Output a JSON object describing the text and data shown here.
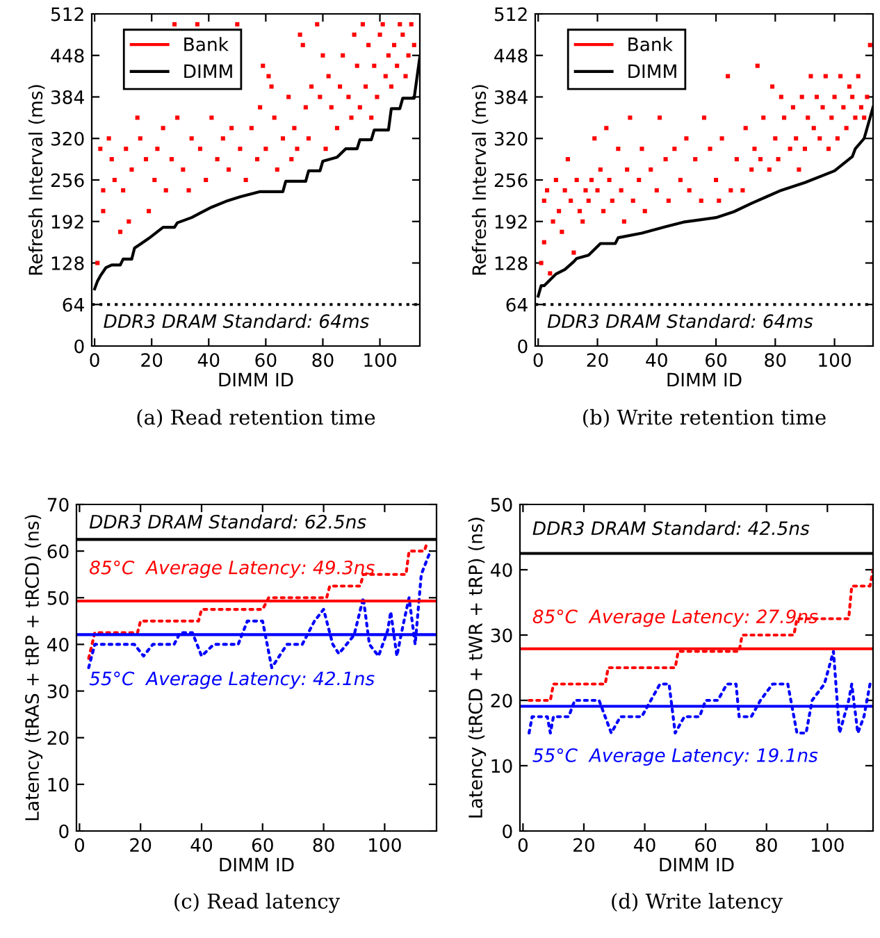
{
  "chart_data": [
    {
      "type": "line",
      "xlabel": "DIMM ID",
      "ylabel": "Refresh Interval (ms)",
      "annotations": [
        "(a) Read retention time"
      ],
      "xlim": [
        -1,
        114
      ],
      "xticks": [
        0,
        20,
        40,
        60,
        80,
        100
      ],
      "ylim": [
        0,
        512
      ],
      "yticks": [
        0,
        64,
        128,
        192,
        256,
        320,
        384,
        448,
        512
      ],
      "grid": false,
      "legend": "top left",
      "series": [
        {
          "name": "Bank",
          "type": "scatter",
          "marker": "square",
          "color": "#ff0000",
          "x": [
            1,
            2,
            3,
            3,
            5,
            6,
            7,
            9,
            10,
            11,
            12,
            13,
            15,
            16,
            18,
            19,
            21,
            22,
            24,
            25,
            27,
            28,
            29,
            31,
            33,
            34,
            36,
            37,
            39,
            41,
            43,
            45,
            47,
            48,
            50,
            51,
            53,
            55,
            57,
            58,
            59,
            60,
            61,
            62,
            63,
            64,
            66,
            68,
            69,
            70,
            71,
            72,
            73,
            74,
            75,
            76,
            78,
            79,
            80,
            81,
            82,
            83,
            85,
            86,
            87,
            89,
            90,
            91,
            92,
            93,
            94,
            95,
            96,
            97,
            98,
            99,
            100,
            101,
            102,
            103,
            104,
            105,
            106,
            107,
            108,
            109,
            110,
            111,
            112
          ],
          "values": [
            128,
            304,
            240,
            208,
            320,
            288,
            256,
            176,
            240,
            304,
            192,
            272,
            352,
            320,
            288,
            208,
            256,
            304,
            336,
            240,
            288,
            496,
            352,
            272,
            240,
            320,
            496,
            304,
            256,
            352,
            288,
            320,
            272,
            336,
            496,
            304,
            256,
            336,
            288,
            368,
            432,
            304,
            416,
            400,
            352,
            272,
            320,
            384,
            288,
            336,
            304,
            480,
            464,
            368,
            320,
            400,
            496,
            384,
            448,
            304,
            416,
            368,
            336,
            400,
            448,
            384,
            352,
            480,
            432,
            368,
            496,
            400,
            464,
            352,
            432,
            384,
            480,
            496,
            416,
            448,
            400,
            464,
            432,
            496,
            480,
            416,
            448,
            496,
            464
          ]
        },
        {
          "name": "DIMM",
          "type": "line",
          "color": "#000000",
          "x": [
            0,
            1,
            2,
            4,
            6,
            9,
            10,
            13,
            14,
            16,
            19,
            24,
            28,
            29,
            34,
            37,
            41,
            46,
            51,
            58,
            66,
            67,
            74,
            75,
            79,
            80,
            85,
            88,
            92,
            93,
            97,
            98,
            103,
            104,
            107,
            108,
            112,
            114
          ],
          "values": [
            88,
            100,
            108,
            121,
            125,
            125,
            134,
            134,
            151,
            157,
            166,
            183,
            183,
            190,
            198,
            205,
            214,
            223,
            230,
            238,
            238,
            254,
            254,
            270,
            270,
            285,
            291,
            304,
            304,
            318,
            318,
            333,
            333,
            366,
            366,
            382,
            382,
            446
          ]
        }
      ],
      "ref_lines": [
        {
          "axis": "y",
          "value": 64,
          "label": "DDR3 DRAM Standard: 64ms",
          "color": "#000000",
          "line_style": "dotted"
        }
      ]
    },
    {
      "type": "line",
      "xlabel": "DIMM ID",
      "ylabel": "Refresh Interval (ms)",
      "annotations": [
        "(b) Write retention time"
      ],
      "xlim": [
        -1,
        113
      ],
      "xticks": [
        0,
        20,
        40,
        60,
        80,
        100
      ],
      "ylim": [
        0,
        512
      ],
      "yticks": [
        0,
        64,
        128,
        192,
        256,
        320,
        384,
        448,
        512
      ],
      "grid": false,
      "legend": "top left",
      "series": [
        {
          "name": "Bank",
          "type": "scatter",
          "marker": "square",
          "color": "#ff0000",
          "x": [
            1,
            2,
            2,
            3,
            4,
            5,
            6,
            7,
            8,
            9,
            10,
            11,
            12,
            13,
            14,
            15,
            16,
            17,
            18,
            19,
            20,
            21,
            22,
            23,
            24,
            25,
            27,
            28,
            29,
            30,
            31,
            32,
            34,
            35,
            36,
            38,
            40,
            41,
            43,
            44,
            46,
            48,
            50,
            51,
            53,
            55,
            56,
            58,
            60,
            61,
            62,
            64,
            65,
            67,
            69,
            70,
            72,
            73,
            74,
            75,
            76,
            78,
            79,
            80,
            81,
            82,
            83,
            85,
            86,
            87,
            88,
            89,
            90,
            91,
            92,
            93,
            94,
            95,
            96,
            97,
            98,
            99,
            100,
            101,
            102,
            103,
            104,
            105,
            106,
            107,
            108,
            109,
            110,
            111,
            112
          ],
          "values": [
            128,
            160,
            224,
            240,
            112,
            192,
            256,
            208,
            176,
            240,
            288,
            224,
            144,
            256,
            208,
            192,
            240,
            224,
            256,
            320,
            240,
            272,
            208,
            336,
            256,
            224,
            304,
            240,
            192,
            272,
            352,
            224,
            256,
            304,
            208,
            272,
            240,
            352,
            288,
            224,
            304,
            256,
            320,
            240,
            288,
            224,
            352,
            304,
            256,
            224,
            320,
            416,
            240,
            288,
            240,
            336,
            272,
            304,
            432,
            288,
            352,
            272,
            400,
            320,
            288,
            384,
            352,
            304,
            368,
            320,
            272,
            384,
            304,
            352,
            416,
            336,
            384,
            320,
            368,
            416,
            304,
            352,
            384,
            320,
            416,
            368,
            336,
            400,
            384,
            352,
            416,
            368,
            352,
            384,
            464
          ]
        },
        {
          "name": "DIMM",
          "type": "line",
          "color": "#000000",
          "x": [
            0,
            1,
            2,
            4,
            6,
            9,
            12,
            13,
            17,
            21,
            26,
            27,
            35,
            43,
            49,
            60,
            66,
            72,
            77,
            82,
            90,
            100,
            106,
            107,
            110,
            113
          ],
          "values": [
            77,
            93,
            93,
            102,
            111,
            118,
            130,
            135,
            140,
            158,
            158,
            167,
            174,
            184,
            191,
            198,
            207,
            220,
            230,
            240,
            252,
            270,
            292,
            304,
            320,
            368
          ]
        }
      ],
      "ref_lines": [
        {
          "axis": "y",
          "value": 64,
          "label": "DDR3 DRAM Standard: 64ms",
          "color": "#000000",
          "line_style": "dotted"
        }
      ]
    },
    {
      "type": "line",
      "xlabel": "DIMM ID",
      "ylabel": "Latency (tRAS + tRP + tRCD) (ns)",
      "annotations": [
        "(c) Read latency"
      ],
      "xlim": [
        -1,
        117
      ],
      "xticks": [
        0,
        20,
        40,
        60,
        80,
        100
      ],
      "ylim": [
        0,
        70
      ],
      "yticks": [
        0,
        10,
        20,
        30,
        40,
        50,
        60,
        70
      ],
      "grid": false,
      "line_style": "dotted",
      "series": [
        {
          "color": "#ff0000",
          "x": [
            3,
            5,
            19,
            20,
            39,
            40,
            60,
            62,
            81,
            82,
            92,
            93,
            107,
            108,
            113,
            114
          ],
          "values": [
            37,
            42.5,
            42.5,
            45,
            45,
            47.5,
            47.5,
            50,
            50,
            52.5,
            52.5,
            55,
            55,
            60,
            60,
            62
          ]
        },
        {
          "color": "#0000ff",
          "x": [
            3,
            5,
            18,
            21,
            24,
            31,
            33,
            37,
            40,
            44,
            52,
            55,
            60,
            63,
            68,
            73,
            77,
            80,
            83,
            85,
            90,
            93,
            95,
            98,
            101,
            102,
            104,
            106,
            108,
            110,
            112,
            115
          ],
          "values": [
            35,
            40,
            40,
            37.5,
            40,
            40,
            42.5,
            42.5,
            37.5,
            40,
            40,
            45,
            45,
            35,
            40,
            40,
            45,
            47.5,
            40,
            38,
            42,
            50,
            40,
            37.5,
            43,
            47,
            37.5,
            44,
            50,
            40,
            55,
            60
          ]
        }
      ],
      "ref_lines": [
        {
          "axis": "y",
          "value": 62.5,
          "label": "DDR3 DRAM Standard: 62.5ns",
          "color": "#000000",
          "line_style": "solid"
        },
        {
          "axis": "y",
          "value": 49.3,
          "label": "85°C  Average Latency: 49.3ns",
          "color": "#ff0000",
          "line_style": "solid"
        },
        {
          "axis": "y",
          "value": 42.1,
          "label": "55°C  Average Latency: 42.1ns",
          "color": "#0000ff",
          "line_style": "solid"
        }
      ]
    },
    {
      "type": "line",
      "xlabel": "DIMM ID",
      "ylabel": "Latency (tRCD + tWR + tRP) (ns)",
      "annotations": [
        "(d) Write latency"
      ],
      "xlim": [
        -1,
        115
      ],
      "xticks": [
        0,
        20,
        40,
        60,
        80,
        100
      ],
      "ylim": [
        0,
        50
      ],
      "yticks": [
        0,
        10,
        20,
        30,
        40,
        50
      ],
      "grid": false,
      "line_style": "dotted",
      "series": [
        {
          "color": "#ff0000",
          "x": [
            2,
            9,
            10,
            27,
            28,
            50,
            51,
            71,
            72,
            89,
            90,
            107,
            108,
            114,
            115
          ],
          "values": [
            20,
            20,
            22.5,
            22.5,
            25,
            25,
            27.5,
            27.5,
            30,
            30,
            32.5,
            32.5,
            37.5,
            37.5,
            40
          ]
        },
        {
          "color": "#0000ff",
          "x": [
            2,
            3,
            8,
            9,
            10,
            15,
            17,
            25,
            27,
            29,
            32,
            39,
            42,
            45,
            48,
            50,
            53,
            58,
            60,
            64,
            67,
            70,
            71,
            75,
            78,
            82,
            87,
            90,
            93,
            95,
            99,
            102,
            104,
            107,
            108,
            110,
            112,
            114
          ],
          "values": [
            15,
            17.5,
            17.5,
            15,
            17.5,
            17.5,
            20,
            20,
            17.5,
            15,
            17.5,
            17.5,
            20,
            22.5,
            22.5,
            15,
            17.5,
            17.5,
            20,
            20,
            22.5,
            22.5,
            17.5,
            17.5,
            20,
            22.5,
            22.5,
            15,
            15,
            20,
            22.5,
            27.5,
            15,
            20,
            22.5,
            15,
            17.5,
            22.5
          ]
        }
      ],
      "ref_lines": [
        {
          "axis": "y",
          "value": 42.5,
          "label": "DDR3 DRAM Standard: 42.5ns",
          "color": "#000000",
          "line_style": "solid"
        },
        {
          "axis": "y",
          "value": 27.9,
          "label": "85°C  Average Latency: 27.9ns",
          "color": "#ff0000",
          "line_style": "solid"
        },
        {
          "axis": "y",
          "value": 19.1,
          "label": "55°C  Average Latency: 19.1ns",
          "color": "#0000ff",
          "line_style": "solid"
        }
      ]
    }
  ]
}
